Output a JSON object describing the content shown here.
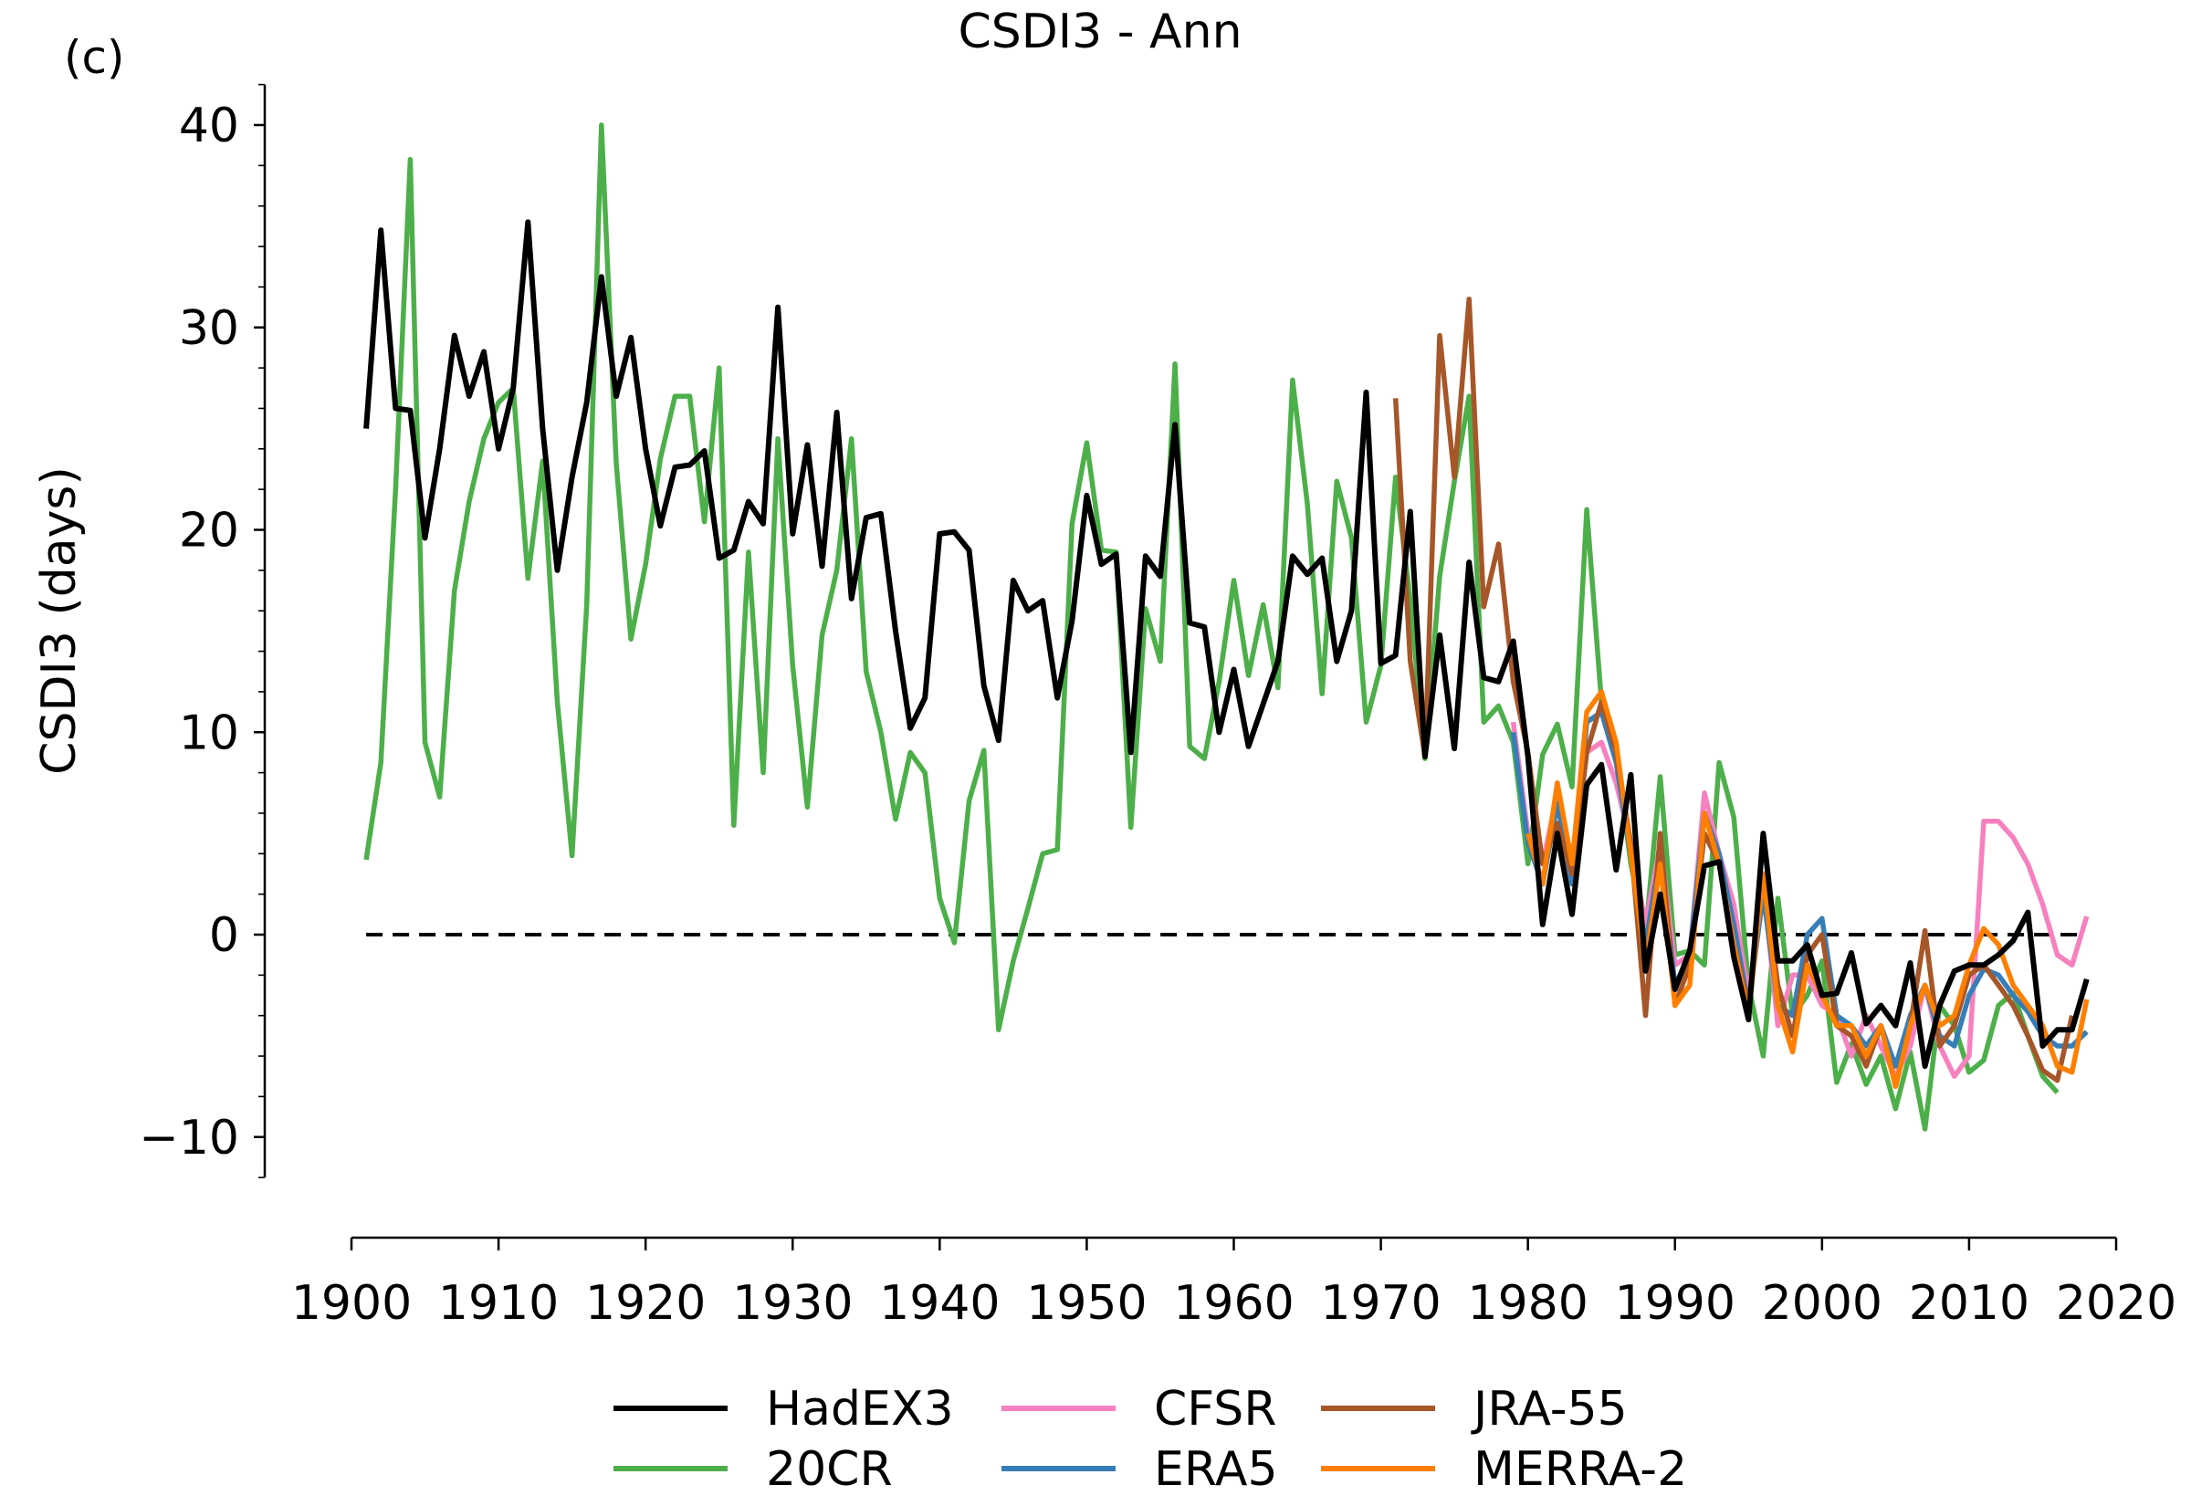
{
  "panel_label": "(c)",
  "chart_data": {
    "type": "line",
    "title": "CSDI3 - Ann",
    "xlabel": "",
    "ylabel": "CSDI3 (days)",
    "xlim": [
      1900,
      2020
    ],
    "ylim": [
      -12,
      42
    ],
    "xticks": [
      1900,
      1910,
      1920,
      1930,
      1940,
      1950,
      1960,
      1970,
      1980,
      1990,
      2000,
      2010,
      2020
    ],
    "yticks": [
      -10,
      0,
      10,
      20,
      30,
      40
    ],
    "reference_line": {
      "y": 0,
      "style": "dashed",
      "color": "#000000"
    },
    "legend_position": "bottom",
    "series": [
      {
        "name": "20CR",
        "color": "#4daf4a",
        "x0": 1901,
        "values": [
          3.7,
          8.5,
          22.0,
          38.3,
          9.5,
          6.8,
          17.0,
          21.4,
          24.5,
          26.3,
          27.0,
          17.6,
          23.4,
          11.5,
          3.9,
          16.3,
          40.0,
          23.3,
          14.6,
          18.3,
          23.5,
          26.6,
          26.6,
          20.4,
          28.0,
          5.4,
          18.9,
          8.0,
          24.5,
          13.3,
          6.3,
          14.8,
          18.0,
          24.5,
          13.0,
          10.0,
          5.7,
          9.0,
          8.0,
          1.8,
          -0.4,
          6.6,
          9.1,
          -4.7,
          -1.3,
          1.3,
          4.0,
          4.2,
          20.3,
          24.3,
          19.0,
          18.9,
          5.3,
          16.1,
          13.5,
          28.2,
          9.3,
          8.7,
          12.5,
          17.5,
          12.8,
          16.3,
          12.2,
          27.4,
          21.3,
          11.9,
          22.4,
          19.6,
          10.5,
          13.3,
          22.6,
          16.5,
          8.7,
          17.7,
          22.4,
          26.6,
          10.5,
          11.3,
          9.5,
          3.5,
          8.9,
          10.4,
          7.3,
          21.0,
          11.5,
          9.0,
          3.5,
          0.0,
          7.8,
          -1.0,
          -0.8,
          -1.5,
          8.5,
          5.8,
          -2.5,
          -6.0,
          1.8,
          -4.0,
          -3.0,
          -1.3,
          -7.3,
          -5.4,
          -7.4,
          -6.0,
          -8.6,
          -5.8,
          -9.6,
          -3.5,
          -4.5,
          -6.8,
          -6.2,
          -3.5,
          -2.9,
          -5.0,
          -7.0,
          -7.8
        ]
      },
      {
        "name": "HadEX3",
        "color": "#000000",
        "x0": 1901,
        "values": [
          25.0,
          34.8,
          26.0,
          25.9,
          19.6,
          24.0,
          29.6,
          26.6,
          28.8,
          24.0,
          27.0,
          35.2,
          25.0,
          18.0,
          22.6,
          26.3,
          32.5,
          26.6,
          29.5,
          24.0,
          20.2,
          23.1,
          23.2,
          23.9,
          18.6,
          19.0,
          21.4,
          20.3,
          31.0,
          19.8,
          24.2,
          18.2,
          25.8,
          16.6,
          20.6,
          20.8,
          15.0,
          10.2,
          11.7,
          19.8,
          19.9,
          19.0,
          12.3,
          9.6,
          17.5,
          16.0,
          16.5,
          11.7,
          15.5,
          21.7,
          18.3,
          18.8,
          9.0,
          18.7,
          17.7,
          25.2,
          15.4,
          15.2,
          10.0,
          13.1,
          9.3,
          11.4,
          13.5,
          18.7,
          17.8,
          18.6,
          13.5,
          16.0,
          26.8,
          13.4,
          13.8,
          20.9,
          8.8,
          14.8,
          9.2,
          18.4,
          12.7,
          12.5,
          14.5,
          8.8,
          0.5,
          5.0,
          1.0,
          7.4,
          8.4,
          3.2,
          7.9,
          -1.8,
          2.0,
          -2.7,
          -0.8,
          3.4,
          3.6,
          -1.1,
          -4.2,
          5.0,
          -1.3,
          -1.3,
          -0.5,
          -3.0,
          -2.9,
          -0.9,
          -4.4,
          -3.5,
          -4.5,
          -1.4,
          -6.5,
          -3.5,
          -1.8,
          -1.5,
          -1.5,
          -1.0,
          -0.3,
          1.1,
          -5.5,
          -4.7,
          -4.7,
          -2.2
        ]
      },
      {
        "name": "CFSR",
        "color": "#f781bf",
        "x0": 1979,
        "values": [
          10.5,
          5.0,
          3.5,
          7.0,
          3.0,
          9.0,
          9.5,
          7.5,
          4.5,
          0.5,
          4.5,
          -1.5,
          -1.0,
          7.0,
          4.0,
          1.5,
          -3.0,
          2.5,
          -4.5,
          -2.0,
          -2.0,
          -3.5,
          -4.0,
          -6.0,
          -4.0,
          -5.5,
          -7.0,
          -5.5,
          -2.5,
          -5.5,
          -7.0,
          -6.0,
          5.6,
          5.6,
          4.8,
          3.5,
          1.5,
          -1.0,
          -1.5,
          0.9
        ]
      },
      {
        "name": "ERA5",
        "color": "#377eb8",
        "x0": 1979,
        "values": [
          10.0,
          4.5,
          2.5,
          6.5,
          2.5,
          10.5,
          11.0,
          8.5,
          4.0,
          -0.5,
          4.0,
          -2.5,
          -1.0,
          6.0,
          4.0,
          0.5,
          -3.5,
          2.0,
          -3.5,
          -4.0,
          0.0,
          0.8,
          -4.0,
          -4.5,
          -5.5,
          -4.5,
          -6.5,
          -4.0,
          -2.5,
          -5.0,
          -5.5,
          -3.0,
          -1.7,
          -2.0,
          -3.0,
          -3.8,
          -5.0,
          -5.5,
          -5.5,
          -4.8
        ]
      },
      {
        "name": "JRA-55",
        "color": "#a65628",
        "x0": 1971,
        "values": [
          26.5,
          13.5,
          8.8,
          29.6,
          22.6,
          31.4,
          16.2,
          19.3,
          12.5,
          9.0,
          3.5,
          5.5,
          3.0,
          9.0,
          11.5,
          9.0,
          4.5,
          -4.0,
          5.0,
          -3.5,
          -1.5,
          5.0,
          3.5,
          -0.5,
          -3.5,
          3.0,
          -2.5,
          -5.0,
          -1.0,
          0.0,
          -4.5,
          -5.0,
          -6.5,
          -4.5,
          -7.5,
          -4.5,
          0.2,
          -5.5,
          -4.5,
          -2.0,
          -1.5,
          -2.5,
          -3.5,
          -5.0,
          -6.7,
          -7.2,
          -4.0
        ]
      },
      {
        "name": "MERRA-2",
        "color": "#ff7f00",
        "x0": 1980,
        "values": [
          5.0,
          2.5,
          7.5,
          3.5,
          11.0,
          12.0,
          9.5,
          4.0,
          -1.5,
          3.5,
          -3.5,
          -2.5,
          6.0,
          3.5,
          -0.5,
          -4.0,
          3.0,
          -3.5,
          -5.8,
          -1.5,
          -3.0,
          -4.5,
          -4.5,
          -6.0,
          -4.5,
          -7.5,
          -4.5,
          -2.5,
          -4.5,
          -4.0,
          -1.5,
          0.3,
          -0.5,
          -2.5,
          -3.5,
          -4.5,
          -6.5,
          -6.8,
          -3.2
        ]
      }
    ]
  }
}
